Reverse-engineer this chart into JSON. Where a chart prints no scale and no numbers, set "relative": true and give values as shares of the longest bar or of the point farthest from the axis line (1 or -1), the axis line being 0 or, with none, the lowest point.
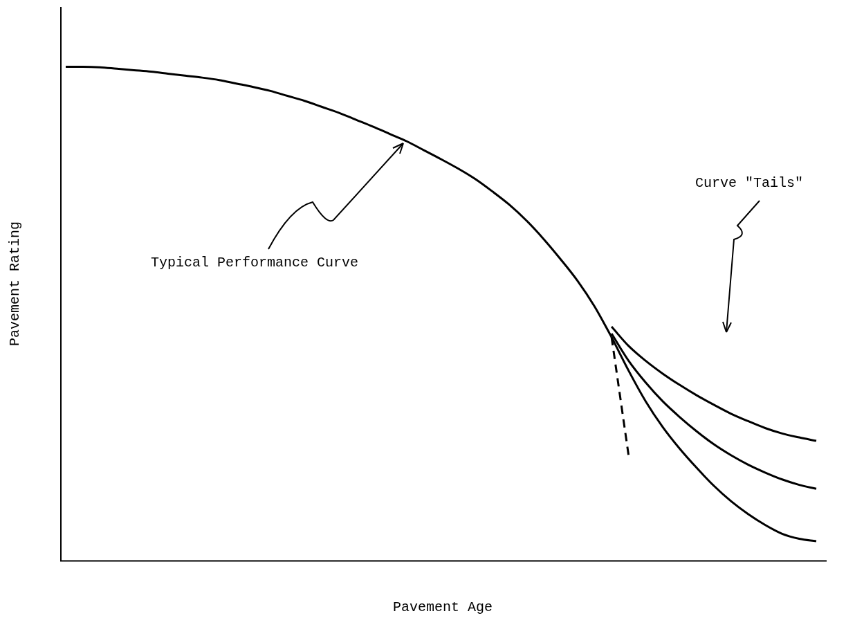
{
  "chart_data": {
    "type": "line",
    "relative": true,
    "xlabel": "Pavement Age",
    "ylabel": "Pavement Rating",
    "categories": [
      null,
      null,
      null,
      null,
      null,
      null,
      null,
      null,
      null,
      null,
      null,
      null,
      null,
      null,
      null,
      null,
      null,
      null,
      null,
      null,
      null,
      null,
      null,
      null,
      null,
      null,
      null,
      null,
      null,
      null,
      null,
      null,
      null,
      null,
      null,
      null,
      null,
      null,
      null,
      null,
      null,
      null,
      null,
      null,
      null
    ],
    "series": [
      {
        "color": "#000000",
        "values": [
          1.0,
          1.0,
          0.999,
          0.996,
          0.993,
          0.99,
          0.986,
          0.982,
          0.978,
          0.973,
          0.966,
          0.959,
          0.951,
          0.941,
          0.931,
          0.919,
          0.907,
          0.893,
          0.879,
          0.864,
          0.849,
          0.831,
          0.813,
          0.794,
          0.773,
          0.748,
          0.721,
          0.689,
          0.652,
          0.611,
          0.567,
          0.515,
          0.453,
          null,
          null,
          null,
          null,
          null,
          null,
          null,
          null,
          null,
          null,
          null,
          null
        ]
      },
      {
        "color": "#000000",
        "line_style": "dashed",
        "values": [
          null,
          null,
          null,
          null,
          null,
          null,
          null,
          null,
          null,
          null,
          null,
          null,
          null,
          null,
          null,
          null,
          null,
          null,
          null,
          null,
          null,
          null,
          null,
          null,
          null,
          null,
          null,
          null,
          null,
          null,
          null,
          null,
          0.453,
          0.213,
          null,
          null,
          null,
          null,
          null,
          null,
          null,
          null,
          null,
          null,
          null
        ]
      },
      {
        "color": "#000000",
        "values": [
          null,
          null,
          null,
          null,
          null,
          null,
          null,
          null,
          null,
          null,
          null,
          null,
          null,
          null,
          null,
          null,
          null,
          null,
          null,
          null,
          null,
          null,
          null,
          null,
          null,
          null,
          null,
          null,
          null,
          null,
          null,
          null,
          0.474,
          0.435,
          0.405,
          0.379,
          0.356,
          0.335,
          0.316,
          0.298,
          0.283,
          0.269,
          0.258,
          0.25,
          0.243
        ]
      },
      {
        "color": "#000000",
        "values": [
          null,
          null,
          null,
          null,
          null,
          null,
          null,
          null,
          null,
          null,
          null,
          null,
          null,
          null,
          null,
          null,
          null,
          null,
          null,
          null,
          null,
          null,
          null,
          null,
          null,
          null,
          null,
          null,
          null,
          null,
          null,
          null,
          0.46,
          0.405,
          0.361,
          0.323,
          0.291,
          0.262,
          0.236,
          0.214,
          0.195,
          0.179,
          0.165,
          0.154,
          0.146
        ]
      },
      {
        "color": "#000000",
        "values": [
          null,
          null,
          null,
          null,
          null,
          null,
          null,
          null,
          null,
          null,
          null,
          null,
          null,
          null,
          null,
          null,
          null,
          null,
          null,
          null,
          null,
          null,
          null,
          null,
          null,
          null,
          null,
          null,
          null,
          null,
          null,
          null,
          0.453,
          0.385,
          0.323,
          0.271,
          0.227,
          0.188,
          0.152,
          0.121,
          0.095,
          0.073,
          0.055,
          0.045,
          0.04
        ]
      }
    ],
    "annotations": [
      "Typical Performance Curve",
      "Curve \"Tails\""
    ],
    "marker": "none",
    "line_style": "solid",
    "grid": false,
    "legend": false
  }
}
